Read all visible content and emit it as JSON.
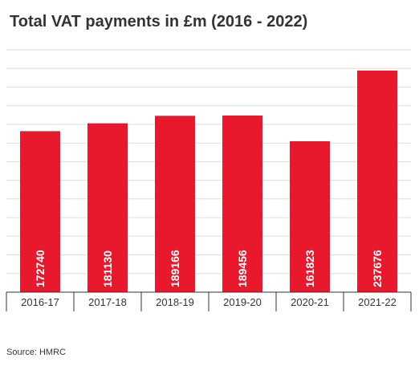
{
  "title": "Total VAT payments in £m (2016 - 2022)",
  "source": "Source: HMRC",
  "chart_data": {
    "type": "bar",
    "title": "Total VAT payments in £m (2016 - 2022)",
    "categories": [
      "2016-17",
      "2017-18",
      "2018-19",
      "2019-20",
      "2020-21",
      "2021-22"
    ],
    "values": [
      172740,
      181130,
      189166,
      189456,
      161823,
      237676
    ],
    "ylim": [
      0,
      260000
    ],
    "grid": true,
    "legend": "none",
    "bar_color": "#E8192C",
    "value_labels": "inside-bottom-rotated"
  }
}
